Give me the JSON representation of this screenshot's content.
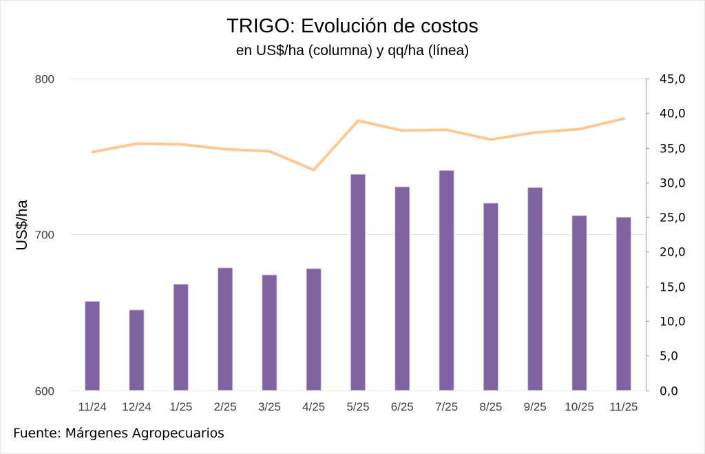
{
  "chart_data": {
    "type": "bar+line",
    "title": "TRIGO: Evolución de costos",
    "subtitle": "en US$/ha (columna) y qq/ha (línea)",
    "source": "Fuente: Márgenes Agropecuarios",
    "categories": [
      "11/24",
      "12/24",
      "1/25",
      "2/25",
      "3/25",
      "4/25",
      "5/25",
      "6/25",
      "7/25",
      "8/25",
      "9/25",
      "10/25",
      "11/25"
    ],
    "series": [
      {
        "name": "US$/ha",
        "type": "bar",
        "axis": "left",
        "color": "#8064A2",
        "values": [
          657,
          651.5,
          668,
          678.5,
          674,
          678,
          738.5,
          730.5,
          741,
          720,
          730,
          712,
          711
        ]
      },
      {
        "name": "qq/ha",
        "type": "line",
        "axis": "right",
        "color": "#FFC894",
        "values": [
          34.4,
          35.6,
          35.5,
          34.8,
          34.5,
          31.8,
          38.9,
          37.5,
          37.6,
          36.2,
          37.2,
          37.7,
          39.2
        ]
      }
    ],
    "y_left": {
      "label": "US$/ha",
      "ylim": [
        600,
        800
      ],
      "ticks": [
        600,
        700,
        800
      ],
      "tick_labels": [
        "600",
        "700",
        "800"
      ]
    },
    "y_right": {
      "label": "",
      "ylim": [
        0,
        45
      ],
      "ticks": [
        0,
        5,
        10,
        15,
        20,
        25,
        30,
        35,
        40,
        45
      ],
      "tick_labels": [
        "0,0",
        "5,0",
        "10,0",
        "15,0",
        "20,0",
        "25,0",
        "30,0",
        "35,0",
        "40,0",
        "45,0"
      ]
    },
    "grid": true,
    "legend": "none"
  },
  "colors": {
    "grid": "#E8E8E8",
    "axis": "#A6A6A6",
    "bar_border": "#C9B8DD"
  }
}
